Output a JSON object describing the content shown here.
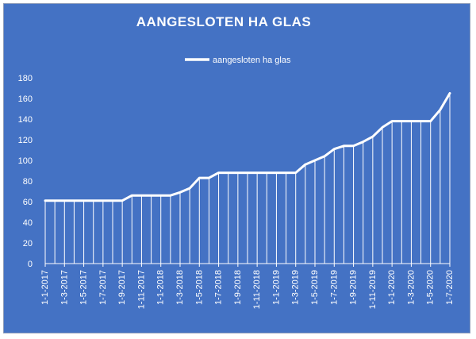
{
  "chart_data": {
    "type": "line",
    "title": "AANGESLOTEN HA GLAS",
    "xlabel": "",
    "ylabel": "",
    "ylim": [
      0,
      180
    ],
    "yticks": [
      0,
      20,
      40,
      60,
      80,
      100,
      120,
      140,
      160,
      180
    ],
    "grid": false,
    "legend_position": "top",
    "colors": {
      "background": "#4472c4",
      "line": "#ffffff",
      "text": "#ffffff"
    },
    "categories": [
      "1-1-2017",
      "1-2-2017",
      "1-3-2017",
      "1-4-2017",
      "1-5-2017",
      "1-6-2017",
      "1-7-2017",
      "1-8-2017",
      "1-9-2017",
      "1-10-2017",
      "1-11-2017",
      "1-12-2017",
      "1-1-2018",
      "1-2-2018",
      "1-3-2018",
      "1-4-2018",
      "1-5-2018",
      "1-6-2018",
      "1-7-2018",
      "1-8-2018",
      "1-9-2018",
      "1-10-2018",
      "1-11-2018",
      "1-12-2018",
      "1-1-2019",
      "1-2-2019",
      "1-3-2019",
      "1-4-2019",
      "1-5-2019",
      "1-6-2019",
      "1-7-2019",
      "1-8-2019",
      "1-9-2019",
      "1-10-2019",
      "1-11-2019",
      "1-12-2019",
      "1-1-2020",
      "1-2-2020",
      "1-3-2020",
      "1-4-2020",
      "1-5-2020",
      "1-6-2020",
      "1-7-2020"
    ],
    "tick_labels": [
      "1-1-2017",
      "1-3-2017",
      "1-5-2017",
      "1-7-2017",
      "1-9-2017",
      "1-11-2017",
      "1-1-2018",
      "1-3-2018",
      "1-5-2018",
      "1-7-2018",
      "1-9-2018",
      "1-11-2018",
      "1-1-2019",
      "1-3-2019",
      "1-5-2019",
      "1-7-2019",
      "1-9-2019",
      "1-11-2019",
      "1-1-2020",
      "1-3-2020",
      "1-5-2020",
      "1-7-2020"
    ],
    "series": [
      {
        "name": "aangesloten ha glas",
        "values": [
          61,
          61,
          61,
          61,
          61,
          61,
          61,
          61,
          61,
          66,
          66,
          66,
          66,
          66,
          69,
          73,
          83,
          83,
          88,
          88,
          88,
          88,
          88,
          88,
          88,
          88,
          88,
          96,
          100,
          104,
          111,
          114,
          114,
          118,
          123,
          132,
          138,
          138,
          138,
          138,
          138,
          149,
          165
        ]
      }
    ]
  }
}
